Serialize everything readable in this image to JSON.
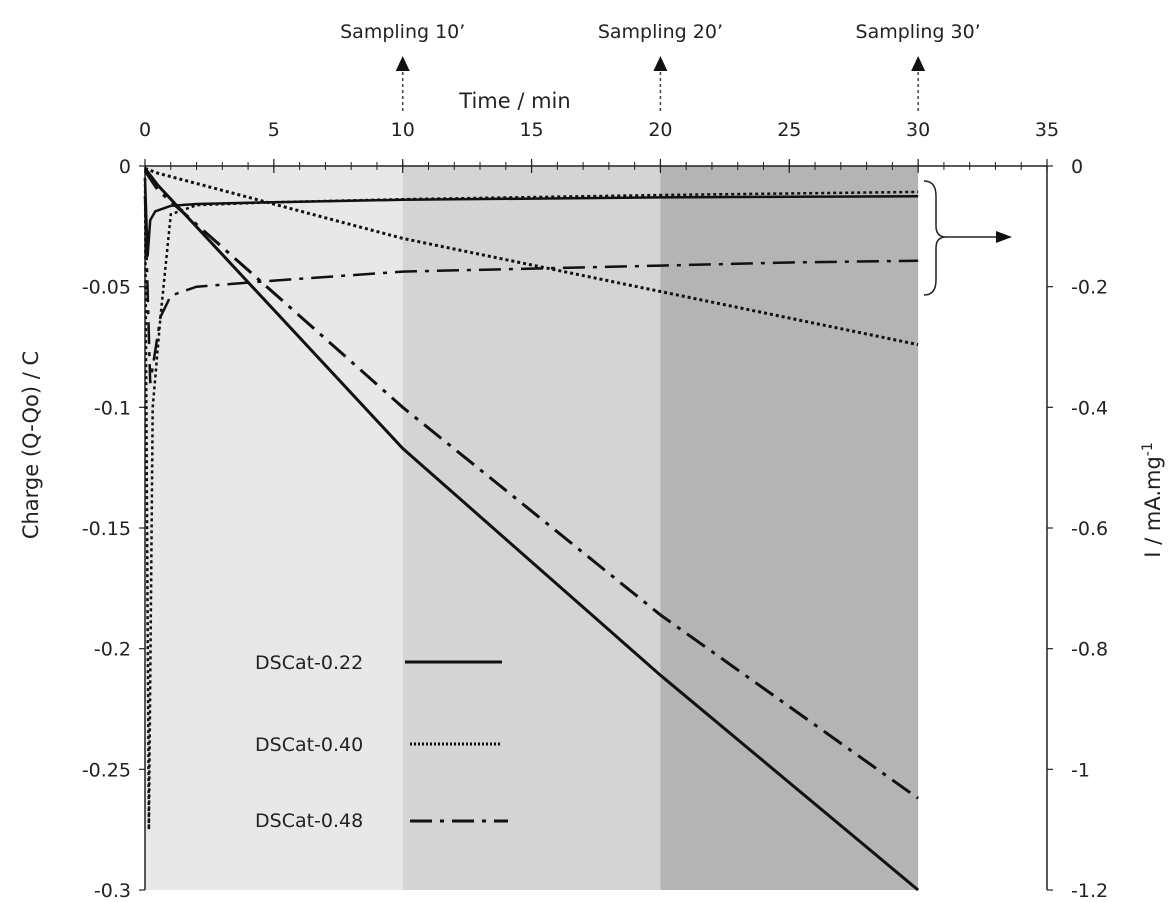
{
  "chart_data": {
    "type": "line",
    "xlabel": "Time / min",
    "ylabel": "Charge (Q-Qo) / C",
    "y2label": "I / mA.mg",
    "y2label_sup": "-1",
    "xlim": [
      0,
      35
    ],
    "ylim": [
      -0.3,
      0
    ],
    "y2lim": [
      -1.2,
      0
    ],
    "x_ticks": [
      "0",
      "5",
      "10",
      "15",
      "20",
      "25",
      "30",
      "35"
    ],
    "y_ticks": [
      "0",
      "-0.05",
      "-0.1",
      "-0.15",
      "-0.2",
      "-0.25",
      "-0.3"
    ],
    "y2_ticks": [
      "0",
      "-0.2",
      "-0.4",
      "-0.6",
      "-0.8",
      "-1",
      "-1.2"
    ],
    "shaded_regions": [
      {
        "x": [
          0,
          10
        ],
        "color": "#e8e8e8"
      },
      {
        "x": [
          10,
          20
        ],
        "color": "#d4d4d4"
      },
      {
        "x": [
          20,
          30
        ],
        "color": "#b4b4b4"
      }
    ],
    "annotations": [
      {
        "text": "Sampling 10’",
        "x": 10
      },
      {
        "text": "Sampling 20’",
        "x": 20
      },
      {
        "text": "Sampling 30’",
        "x": 30
      }
    ],
    "series": [
      {
        "name": "DSCat-0.22",
        "style": "solid",
        "charge": {
          "x": [
            0,
            0.5,
            10,
            20,
            30
          ],
          "y": [
            -0.001,
            -0.008,
            -0.117,
            -0.211,
            -0.3
          ]
        },
        "current": {
          "x": [
            0,
            0.1,
            0.2,
            0.4,
            1,
            2,
            5,
            10,
            20,
            30
          ],
          "y": [
            -0.02,
            -0.15,
            -0.09,
            -0.075,
            -0.066,
            -0.063,
            -0.06,
            -0.056,
            -0.052,
            -0.05
          ]
        }
      },
      {
        "name": "DSCat-0.40",
        "style": "dotted",
        "charge": {
          "x": [
            0,
            0.5,
            10,
            20,
            30
          ],
          "y": [
            -0.001,
            -0.003,
            -0.03,
            -0.052,
            -0.074
          ]
        },
        "current": {
          "x": [
            0,
            0.15,
            0.3,
            0.6,
            1,
            2,
            5,
            10,
            20,
            30
          ],
          "y": [
            -0.02,
            -1.1,
            -0.4,
            -0.25,
            -0.08,
            -0.065,
            -0.06,
            -0.055,
            -0.048,
            -0.043
          ]
        }
      },
      {
        "name": "DSCat-0.48",
        "style": "dashdot",
        "charge": {
          "x": [
            0,
            0.5,
            10,
            20,
            30
          ],
          "y": [
            -0.002,
            -0.01,
            -0.1,
            -0.186,
            -0.262
          ]
        },
        "current": {
          "x": [
            0,
            0.2,
            0.6,
            1,
            2,
            5,
            10,
            15,
            20,
            25,
            30
          ],
          "y": [
            -0.05,
            -0.36,
            -0.25,
            -0.215,
            -0.2,
            -0.19,
            -0.175,
            -0.17,
            -0.165,
            -0.16,
            -0.157
          ]
        }
      }
    ],
    "legend_position": "lower-left"
  }
}
